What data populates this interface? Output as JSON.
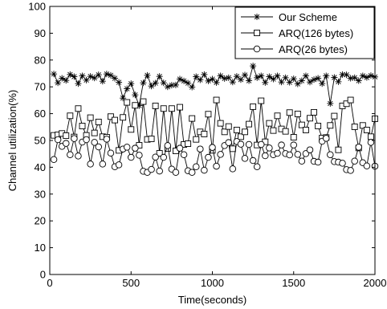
{
  "chart_data": {
    "type": "line",
    "xlabel": "Time(seconds)",
    "ylabel": "Channel utilization(%)",
    "xlim": [
      0,
      2000
    ],
    "ylim": [
      0,
      100
    ],
    "xticks": [
      0,
      500,
      1000,
      1500,
      2000
    ],
    "yticks": [
      0,
      10,
      20,
      30,
      40,
      50,
      60,
      70,
      80,
      90,
      100
    ],
    "grid": false,
    "legend_position": "top-right",
    "x": [
      25,
      50,
      75,
      100,
      125,
      150,
      175,
      200,
      225,
      250,
      275,
      300,
      325,
      350,
      375,
      400,
      425,
      450,
      475,
      500,
      525,
      550,
      575,
      600,
      625,
      650,
      675,
      700,
      725,
      750,
      775,
      800,
      825,
      850,
      875,
      900,
      925,
      950,
      975,
      1000,
      1025,
      1050,
      1075,
      1100,
      1125,
      1150,
      1175,
      1200,
      1225,
      1250,
      1275,
      1300,
      1325,
      1350,
      1375,
      1400,
      1425,
      1450,
      1475,
      1500,
      1525,
      1550,
      1575,
      1600,
      1625,
      1650,
      1675,
      1700,
      1725,
      1750,
      1775,
      1800,
      1825,
      1850,
      1875,
      1900,
      1925,
      1950,
      1975,
      2000
    ],
    "series": [
      {
        "name": "Our Scheme",
        "marker": "star",
        "values": [
          74.8,
          71.5,
          73.2,
          72.4,
          74.6,
          73.8,
          71.2,
          74.1,
          72.5,
          73.9,
          73.3,
          74.5,
          72.1,
          74.8,
          74.3,
          73.2,
          71.7,
          65.8,
          69.3,
          71.2,
          67.0,
          63.0,
          71.5,
          74.3,
          70.3,
          71.4,
          73.9,
          71.5,
          70.0,
          70.6,
          70.7,
          72.9,
          72.2,
          71.4,
          69.9,
          73.8,
          72.6,
          74.6,
          72.2,
          72.9,
          71.6,
          74.1,
          73.1,
          73.4,
          71.8,
          73.9,
          72.7,
          74.4,
          72.3,
          77.8,
          73.4,
          74.1,
          71.6,
          73.8,
          72.9,
          74.1,
          71.8,
          73.4,
          71.7,
          73.0,
          71.1,
          72.3,
          74.1,
          71.8,
          72.7,
          73.2,
          71.2,
          74.1,
          63.8,
          73.5,
          71.9,
          74.6,
          74.5,
          73.2,
          73.4,
          72.3,
          74.1,
          73.5,
          74.2,
          73.7
        ]
      },
      {
        "name": "ARQ(126 bytes)",
        "marker": "square",
        "values": [
          51.9,
          52.1,
          52.6,
          51.8,
          59.2,
          51.3,
          61.9,
          55.4,
          51.9,
          58.5,
          52.8,
          56.9,
          51.4,
          51.2,
          58.9,
          57.6,
          46.3,
          58.6,
          64.2,
          54.1,
          63.1,
          48.2,
          64.5,
          50.4,
          50.6,
          62.9,
          45.2,
          61.9,
          47.0,
          61.9,
          46.1,
          62.4,
          48.5,
          48.8,
          58.2,
          50.4,
          53.2,
          52.4,
          59.8,
          46.3,
          65.1,
          56.4,
          53.2,
          55.2,
          46.9,
          53.9,
          51.4,
          53.2,
          56.1,
          62.6,
          48.3,
          64.8,
          49.5,
          56.4,
          53.7,
          59.2,
          54.3,
          53.4,
          60.4,
          51.2,
          59.9,
          55.8,
          53.9,
          58.3,
          60.5,
          55.4,
          50.9,
          51.1,
          55.6,
          59.1,
          46.5,
          62.9,
          63.7,
          65.1,
          55.1,
          47.2,
          55.6,
          53.9,
          51.4,
          58.1
        ]
      },
      {
        "name": "ARQ(26 bytes)",
        "marker": "circle",
        "values": [
          42.9,
          50.3,
          47.8,
          48.9,
          44.7,
          50.7,
          44.2,
          49.4,
          50.3,
          41.2,
          49.3,
          47.6,
          41.2,
          50.5,
          45.3,
          40.2,
          40.9,
          46.8,
          47.5,
          43.7,
          47.1,
          44.5,
          38.5,
          38.1,
          39.2,
          43.8,
          38.6,
          43.7,
          48.1,
          39.3,
          38.1,
          47.1,
          44.7,
          38.7,
          38.1,
          40.2,
          46.8,
          38.9,
          43.7,
          47.4,
          40.4,
          44.8,
          48.1,
          49.2,
          39.4,
          49.6,
          48.6,
          43.3,
          48.5,
          42.5,
          40.2,
          48.5,
          44.3,
          47.2,
          44.7,
          45.2,
          48.3,
          45.1,
          44.6,
          48.3,
          44.8,
          42.3,
          45.1,
          46.5,
          42.2,
          41.9,
          49.7,
          50.8,
          44.7,
          42.1,
          41.9,
          41.5,
          39.1,
          38.8,
          42.3,
          47.5,
          41.7,
          40.5,
          49.3,
          40.4
        ]
      }
    ]
  }
}
